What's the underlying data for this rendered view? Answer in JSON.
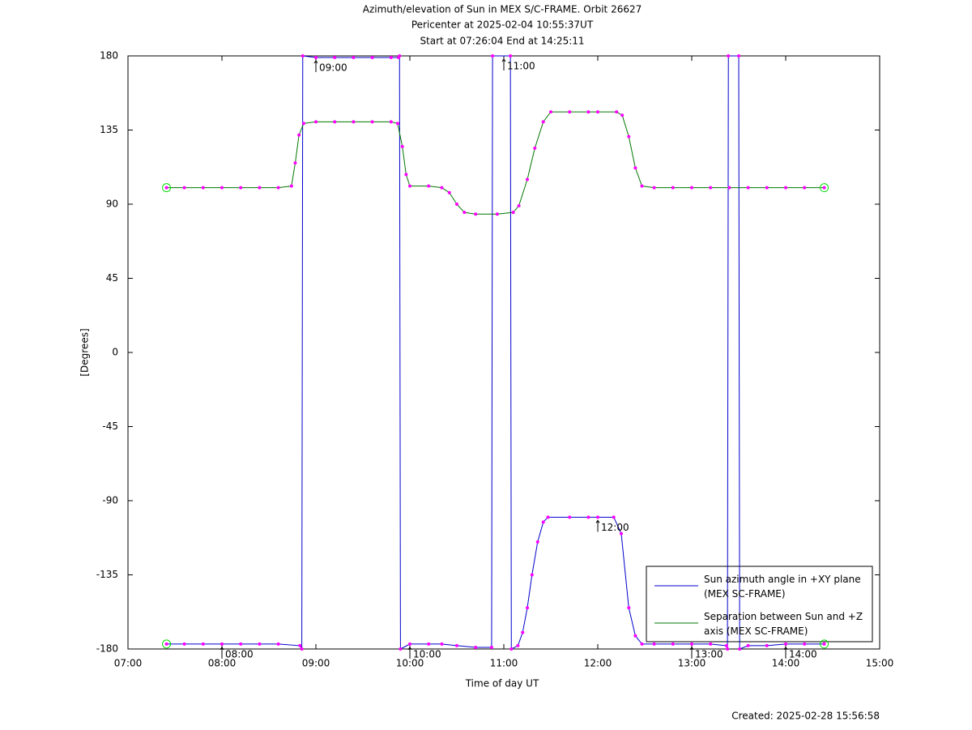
{
  "chart_data": {
    "type": "line",
    "title_lines": [
      "Azimuth/elevation of Sun in MEX S/C-FRAME.  Orbit 26627",
      "Pericenter at 2025-02-04 10:55:37UT",
      "Start at 07:26:04 End at 14:25:11"
    ],
    "xlabel": "Time of day UT",
    "ylabel": "[Degrees]",
    "footer": "Created: 2025-02-28 15:56:58",
    "xlim": [
      7,
      15
    ],
    "xticks": [
      {
        "value": 7,
        "label": "07:00"
      },
      {
        "value": 8,
        "label": "08:00"
      },
      {
        "value": 9,
        "label": "09:00"
      },
      {
        "value": 10,
        "label": "10:00"
      },
      {
        "value": 11,
        "label": "11:00"
      },
      {
        "value": 12,
        "label": "12:00"
      },
      {
        "value": 13,
        "label": "13:00"
      },
      {
        "value": 14,
        "label": "14:00"
      },
      {
        "value": 15,
        "label": "15:00"
      }
    ],
    "ylim": [
      -180,
      180
    ],
    "yticks": [
      180,
      135,
      90,
      45,
      0,
      -45,
      -90,
      -135,
      -180
    ],
    "grid": false,
    "legend": "lower right",
    "marker_color": "#ff00ff",
    "endpoint_color": "#00dd00",
    "series": [
      {
        "name": "Sun azimuth angle in +XY plane (MEX SC-FRAME)",
        "color": "#0000cc",
        "x": [
          7.41,
          7.6,
          7.8,
          8.0,
          8.2,
          8.4,
          8.6,
          8.83,
          8.85,
          8.86,
          9.0,
          9.2,
          9.4,
          9.6,
          9.8,
          9.88,
          9.89,
          9.9,
          10.0,
          10.2,
          10.34,
          10.5,
          10.7,
          10.87,
          10.88,
          11.07,
          11.08,
          11.15,
          11.2,
          11.25,
          11.3,
          11.36,
          11.42,
          11.47,
          11.7,
          11.9,
          12.0,
          12.17,
          12.25,
          12.33,
          12.4,
          12.47,
          12.6,
          12.8,
          13.0,
          13.2,
          13.37,
          13.38,
          13.39,
          13.5,
          13.51,
          13.6,
          13.8,
          14.0,
          14.2,
          14.41
        ],
        "values": [
          -177,
          -177,
          -177,
          -177,
          -177,
          -177,
          -177,
          -178,
          -180,
          180,
          179,
          179,
          179,
          179,
          179,
          179,
          180,
          -180,
          -177,
          -177,
          -177,
          -178,
          -179,
          -179,
          180,
          180,
          -180,
          -178,
          -170,
          -155,
          -135,
          -115,
          -103,
          -100,
          -100,
          -100,
          -100,
          -100,
          -110,
          -155,
          -172,
          -177,
          -177,
          -177,
          -177,
          -177,
          -178,
          -180,
          180,
          180,
          -180,
          -178,
          -178,
          -177,
          -177,
          -177
        ]
      },
      {
        "name": "Separation between Sun and +Z axis (MEX SC-FRAME)",
        "color": "#007700",
        "x": [
          7.41,
          7.6,
          7.8,
          8.0,
          8.2,
          8.4,
          8.6,
          8.74,
          8.78,
          8.82,
          8.87,
          9.0,
          9.2,
          9.4,
          9.6,
          9.8,
          9.87,
          9.92,
          9.96,
          10.0,
          10.2,
          10.34,
          10.42,
          10.5,
          10.58,
          10.7,
          10.93,
          11.1,
          11.16,
          11.25,
          11.33,
          11.42,
          11.5,
          11.7,
          11.9,
          12.0,
          12.2,
          12.26,
          12.33,
          12.4,
          12.47,
          12.6,
          12.8,
          13.0,
          13.2,
          13.4,
          13.6,
          13.8,
          14.0,
          14.2,
          14.41
        ],
        "values": [
          100,
          100,
          100,
          100,
          100,
          100,
          100,
          101,
          115,
          132,
          139,
          140,
          140,
          140,
          140,
          140,
          139,
          125,
          108,
          101,
          101,
          100,
          97,
          90,
          85,
          84,
          84,
          85,
          89,
          105,
          124,
          140,
          146,
          146,
          146,
          146,
          146,
          144,
          131,
          112,
          101,
          100,
          100,
          100,
          100,
          100,
          100,
          100,
          100,
          100,
          100
        ]
      }
    ],
    "annotations": [
      {
        "x": 8,
        "label": "08:00"
      },
      {
        "x": 9,
        "label": "09:00"
      },
      {
        "x": 10,
        "label": "10:00"
      },
      {
        "x": 11,
        "label": "11:00"
      },
      {
        "x": 12,
        "label": "12:00"
      },
      {
        "x": 13,
        "label": "13:00"
      },
      {
        "x": 14,
        "label": "14:00"
      }
    ]
  }
}
